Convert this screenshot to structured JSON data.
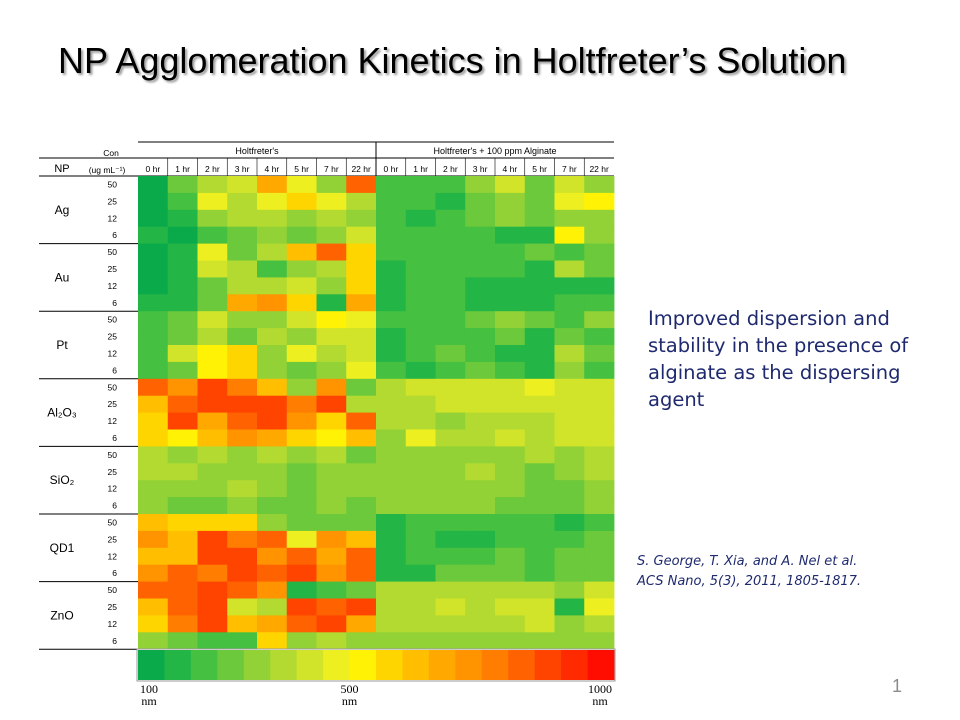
{
  "slide": {
    "title": "NP Agglomeration Kinetics in Holtfreter’s Solution",
    "callout": "Improved dispersion and stability in the presence of alginate as the dispersing agent",
    "citation_line1": "S. George, T. Xia, and A. Nel et al.",
    "citation_line2": "ACS Nano, 5(3), 2011, 1805-1817.",
    "page_number": "1"
  },
  "chart_data": {
    "type": "heatmap",
    "header_np": "NP",
    "header_con_line1": "Con",
    "header_con_line2": "(ug mL⁻¹)",
    "groups": [
      {
        "label": "Holtfreter's",
        "times": [
          "0 hr",
          "1 hr",
          "2 hr",
          "3 hr",
          "4 hr",
          "5 hr",
          "7 hr",
          "22 hr"
        ]
      },
      {
        "label": "Holtfreter's + 100 ppm Alginate",
        "times": [
          "0 hr",
          "1 hr",
          "2 hr",
          "3 hr",
          "4 hr",
          "5 hr",
          "7 hr",
          "22 hr"
        ]
      }
    ],
    "nps": [
      {
        "label": "Ag",
        "rows": [
          {
            "con": "50",
            "values": [
              100,
              250,
              350,
              400,
              700,
              450,
              300,
              850,
              200,
              200,
              200,
              300,
              400,
              250,
              400,
              300
            ]
          },
          {
            "con": "25",
            "values": [
              100,
              200,
              450,
              350,
              450,
              550,
              450,
              350,
              200,
              200,
              150,
              250,
              300,
              250,
              450,
              500
            ]
          },
          {
            "con": "12",
            "values": [
              100,
              150,
              300,
              350,
              350,
              300,
              350,
              300,
              200,
              150,
              200,
              250,
              300,
              250,
              300,
              300
            ]
          },
          {
            "con": "6",
            "values": [
              150,
              100,
              200,
              250,
              300,
              250,
              300,
              400,
              200,
              200,
              200,
              200,
              150,
              150,
              500,
              300
            ]
          }
        ]
      },
      {
        "label": "Au",
        "rows": [
          {
            "con": "50",
            "values": [
              100,
              150,
              450,
              250,
              350,
              650,
              850,
              600,
              200,
              200,
              200,
              200,
              200,
              250,
              200,
              250
            ]
          },
          {
            "con": "25",
            "values": [
              100,
              150,
              400,
              350,
              200,
              300,
              350,
              600,
              150,
              200,
              200,
              200,
              200,
              150,
              350,
              250
            ]
          },
          {
            "con": "12",
            "values": [
              100,
              150,
              250,
              350,
              350,
              400,
              300,
              600,
              150,
              200,
              200,
              150,
              150,
              150,
              150,
              150
            ]
          },
          {
            "con": "6",
            "values": [
              150,
              150,
              250,
              700,
              750,
              600,
              150,
              700,
              150,
              200,
              200,
              150,
              150,
              150,
              200,
              200
            ]
          }
        ]
      },
      {
        "label": "Pt",
        "rows": [
          {
            "con": "50",
            "values": [
              200,
              250,
              400,
              300,
              300,
              400,
              500,
              450,
              200,
              200,
              200,
              250,
              300,
              250,
              200,
              300
            ]
          },
          {
            "con": "25",
            "values": [
              200,
              250,
              350,
              250,
              350,
              300,
              400,
              400,
              150,
              200,
              200,
              200,
              250,
              150,
              250,
              200
            ]
          },
          {
            "con": "12",
            "values": [
              200,
              400,
              500,
              600,
              300,
              450,
              350,
              400,
              150,
              200,
              250,
              200,
              150,
              150,
              350,
              250
            ]
          },
          {
            "con": "6",
            "values": [
              200,
              250,
              500,
              550,
              300,
              250,
              300,
              450,
              200,
              150,
              200,
              250,
              200,
              150,
              300,
              200
            ]
          }
        ]
      },
      {
        "label": "Al₂O₃",
        "rows": [
          {
            "con": "50",
            "values": [
              850,
              750,
              900,
              800,
              650,
              300,
              750,
              250,
              350,
              400,
              400,
              400,
              400,
              450,
              400,
              400
            ]
          },
          {
            "con": "25",
            "values": [
              650,
              850,
              900,
              900,
              900,
              800,
              900,
              350,
              350,
              350,
              400,
              400,
              400,
              400,
              400,
              400
            ]
          },
          {
            "con": "12",
            "values": [
              550,
              900,
              700,
              850,
              900,
              750,
              600,
              850,
              350,
              350,
              300,
              350,
              350,
              350,
              400,
              400
            ]
          },
          {
            "con": "6",
            "values": [
              550,
              500,
              650,
              750,
              700,
              600,
              500,
              650,
              300,
              450,
              350,
              350,
              400,
              350,
              400,
              400
            ]
          }
        ]
      },
      {
        "label": "SiO₂",
        "rows": [
          {
            "con": "50",
            "values": [
              350,
              300,
              350,
              300,
              350,
              300,
              350,
              250,
              300,
              300,
              300,
              300,
              300,
              350,
              300,
              350
            ]
          },
          {
            "con": "25",
            "values": [
              350,
              350,
              300,
              300,
              300,
              250,
              300,
              300,
              300,
              300,
              300,
              350,
              300,
              250,
              300,
              350
            ]
          },
          {
            "con": "12",
            "values": [
              300,
              300,
              300,
              350,
              300,
              250,
              300,
              300,
              300,
              300,
              300,
              300,
              300,
              250,
              250,
              300
            ]
          },
          {
            "con": "6",
            "values": [
              300,
              250,
              250,
              300,
              250,
              250,
              300,
              250,
              300,
              300,
              300,
              300,
              250,
              250,
              250,
              300
            ]
          }
        ]
      },
      {
        "label": "QD1",
        "rows": [
          {
            "con": "50",
            "values": [
              650,
              550,
              600,
              550,
              300,
              250,
              250,
              250,
              150,
              200,
              200,
              200,
              200,
              200,
              150,
              200
            ]
          },
          {
            "con": "25",
            "values": [
              750,
              650,
              900,
              800,
              850,
              450,
              750,
              650,
              150,
              200,
              150,
              150,
              200,
              200,
              200,
              250
            ]
          },
          {
            "con": "12",
            "values": [
              650,
              650,
              900,
              900,
              750,
              850,
              700,
              850,
              150,
              200,
              200,
              200,
              250,
              200,
              250,
              250
            ]
          },
          {
            "con": "6",
            "values": [
              750,
              850,
              800,
              900,
              850,
              900,
              750,
              850,
              150,
              150,
              250,
              250,
              250,
              200,
              250,
              250
            ]
          }
        ]
      },
      {
        "label": "ZnO",
        "rows": [
          {
            "con": "50",
            "values": [
              850,
              850,
              900,
              850,
              750,
              150,
              200,
              250,
              350,
              350,
              350,
              350,
              350,
              350,
              300,
              400
            ]
          },
          {
            "con": "25",
            "values": [
              650,
              850,
              900,
              400,
              350,
              900,
              850,
              900,
              350,
              350,
              400,
              350,
              400,
              400,
              150,
              450
            ]
          },
          {
            "con": "12",
            "values": [
              550,
              800,
              900,
              650,
              700,
              850,
              900,
              700,
              350,
              350,
              350,
              350,
              350,
              400,
              300,
              350
            ]
          },
          {
            "con": "6",
            "values": [
              300,
              250,
              200,
              200,
              550,
              300,
              350,
              300,
              300,
              300,
              300,
              300,
              300,
              300,
              300,
              300
            ]
          }
        ]
      }
    ],
    "color_scale": {
      "colors": [
        "#0aaa4b",
        "#24b547",
        "#45c040",
        "#6bc93b",
        "#92d236",
        "#b2da30",
        "#d2e42a",
        "#eeef20",
        "#fff205",
        "#ffd500",
        "#ffbe00",
        "#ffa800",
        "#ff9300",
        "#ff7d00",
        "#ff6200",
        "#ff4400",
        "#ff2a00",
        "#ff0d00"
      ],
      "min": 100,
      "max": 1000,
      "ticks": [
        {
          "value": 100,
          "label": "100"
        },
        {
          "value": 500,
          "label": "500"
        },
        {
          "value": 1000,
          "label": "1000"
        }
      ],
      "unit": "nm"
    }
  }
}
